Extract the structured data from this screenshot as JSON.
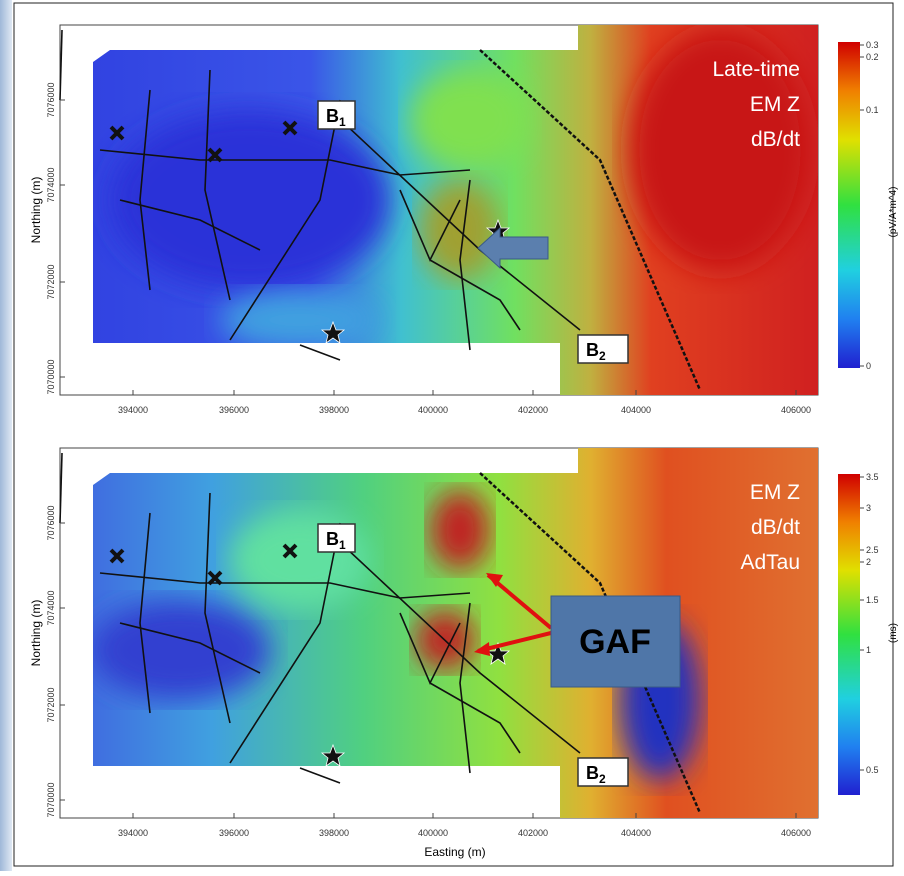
{
  "panels": [
    {
      "overlay_title": [
        "Late-time",
        "EM Z",
        "dB/dt"
      ],
      "y_axis_label": "Northing (m)",
      "x_ticks": [
        394000,
        396000,
        398000,
        400000,
        402000,
        404000,
        406000
      ],
      "y_ticks": [
        7076000,
        7074000,
        7072000,
        7070000
      ],
      "colorbar": {
        "ticks": [
          0.3,
          0.2,
          0.1,
          0
        ],
        "unit": "(pV/A*m^4)"
      },
      "markers": [
        {
          "letter": "B",
          "sub": "1"
        },
        {
          "letter": "B",
          "sub": "2"
        }
      ]
    },
    {
      "overlay_title": [
        "EM Z",
        "dB/dt",
        "AdTau"
      ],
      "y_axis_label": "Northing (m)",
      "x_axis_label": "Easting (m)",
      "x_ticks": [
        394000,
        396000,
        398000,
        400000,
        402000,
        404000,
        406000
      ],
      "y_ticks": [
        7076000,
        7074000,
        7072000,
        7070000
      ],
      "colorbar": {
        "ticks": [
          3.5,
          3,
          2.5,
          2,
          1.5,
          1,
          0.5
        ],
        "unit": "(ms)"
      },
      "markers": [
        {
          "letter": "B",
          "sub": "1"
        },
        {
          "letter": "B",
          "sub": "2"
        }
      ],
      "callout": "GAF"
    }
  ]
}
